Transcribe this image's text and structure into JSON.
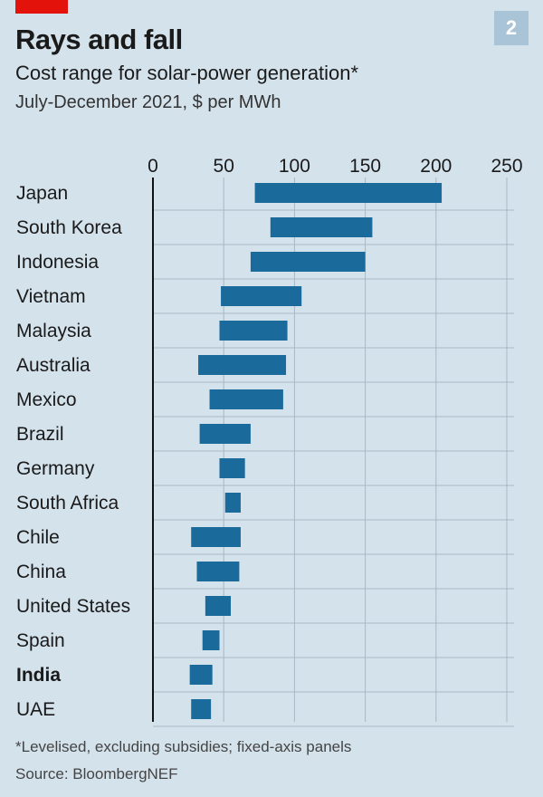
{
  "header": {
    "badge": "2",
    "title": "Rays and fall",
    "subtitle": "Cost range for solar-power generation*",
    "subtitle2": "July-December 2021, $ per MWh"
  },
  "footer": {
    "footnote": "*Levelised, excluding subsidies; fixed-axis panels",
    "source": "Source: BloombergNEF"
  },
  "colors": {
    "bar": "#1a6a9c",
    "grid": "#a8b8c4",
    "axis": "#111111",
    "background": "#d4e2ec",
    "brand": "#e3120b"
  },
  "chart_data": {
    "type": "bar",
    "orientation": "horizontal",
    "range_bars": true,
    "xlim": [
      0,
      250
    ],
    "xticks": [
      0,
      50,
      100,
      150,
      200,
      250
    ],
    "xtick_position": "top",
    "grid": true,
    "highlighted_category": "India",
    "categories": [
      "Japan",
      "South Korea",
      "Indonesia",
      "Vietnam",
      "Malaysia",
      "Australia",
      "Mexico",
      "Brazil",
      "Germany",
      "South Africa",
      "Chile",
      "China",
      "United States",
      "Spain",
      "India",
      "UAE"
    ],
    "low": [
      72,
      83,
      69,
      48,
      47,
      32,
      40,
      33,
      47,
      51,
      27,
      31,
      37,
      35,
      26,
      27
    ],
    "high": [
      204,
      155,
      150,
      105,
      95,
      94,
      92,
      69,
      65,
      62,
      62,
      61,
      55,
      47,
      42,
      41
    ]
  }
}
